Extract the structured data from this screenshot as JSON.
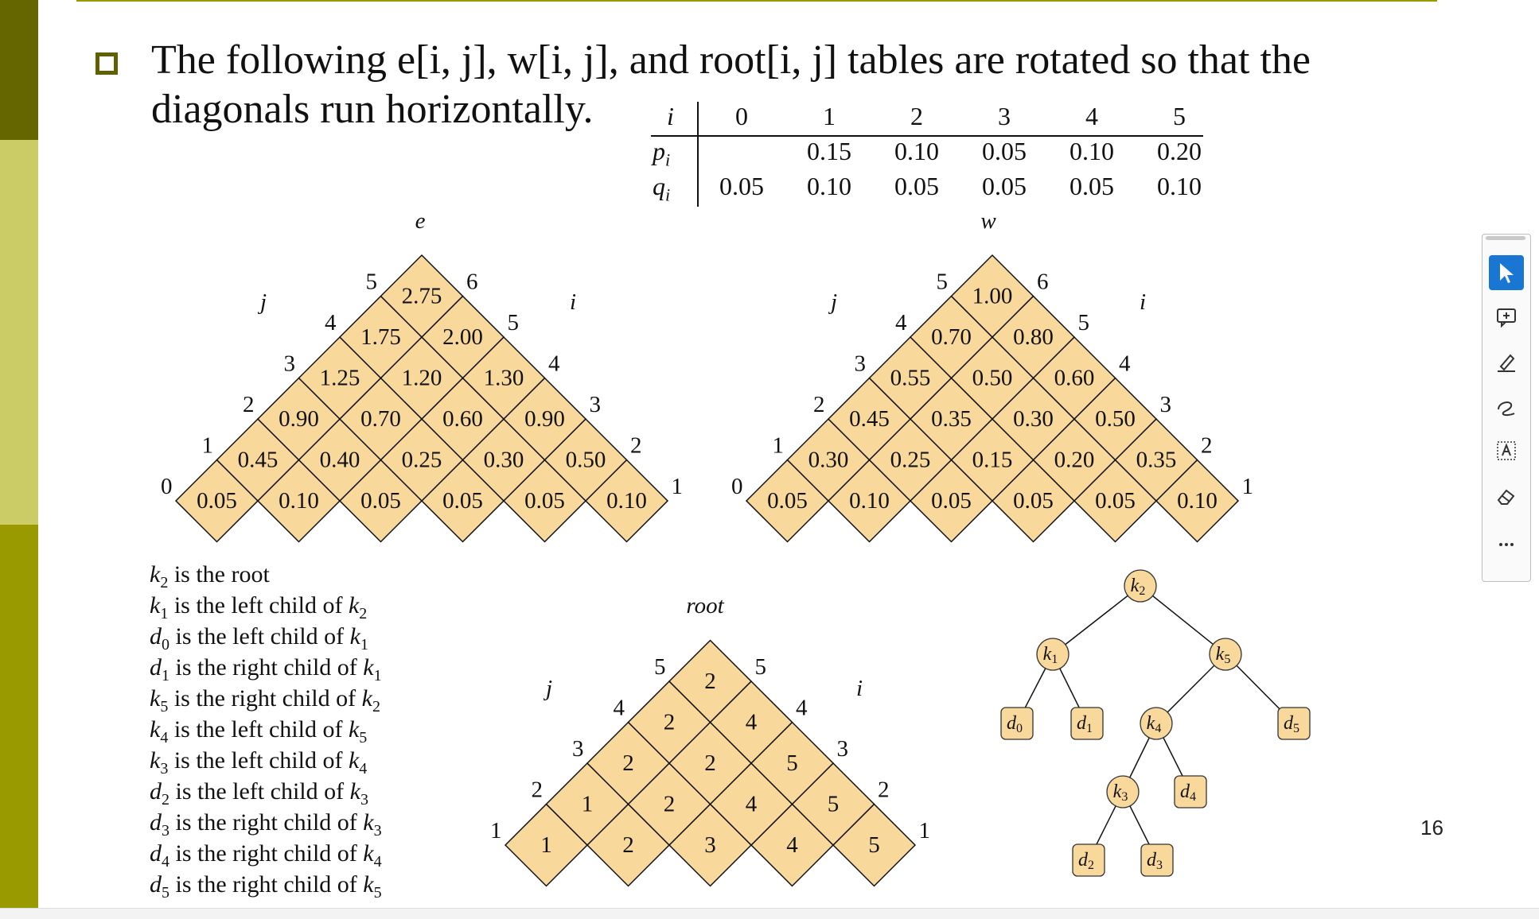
{
  "title": {
    "line1": "The following e[i, j], w[i, j], and root[i, j] tables are rotated so that the",
    "line2": "diagonals run horizontally."
  },
  "prob_table": {
    "i_label": "i",
    "p_label": "p",
    "p_sub": "i",
    "q_label": "q",
    "q_sub": "i",
    "i_values": [
      "0",
      "1",
      "2",
      "3",
      "4",
      "5"
    ],
    "p_values": [
      "",
      "0.15",
      "0.10",
      "0.05",
      "0.10",
      "0.20"
    ],
    "q_values": [
      "0.05",
      "0.10",
      "0.05",
      "0.05",
      "0.05",
      "0.10"
    ]
  },
  "e_table": {
    "label": "e",
    "j_label": "j",
    "i_label": "i",
    "rows": [
      [
        "0.05",
        "0.10",
        "0.05",
        "0.05",
        "0.05",
        "0.10"
      ],
      [
        "0.45",
        "0.40",
        "0.25",
        "0.30",
        "0.50"
      ],
      [
        "0.90",
        "0.70",
        "0.60",
        "0.90"
      ],
      [
        "1.25",
        "1.20",
        "1.30"
      ],
      [
        "1.75",
        "2.00"
      ],
      [
        "2.75"
      ]
    ],
    "j_ticks": [
      "0",
      "1",
      "2",
      "3",
      "4",
      "5"
    ],
    "i_ticks": [
      "1",
      "2",
      "3",
      "4",
      "5",
      "6"
    ]
  },
  "w_table": {
    "label": "w",
    "j_label": "j",
    "i_label": "i",
    "rows": [
      [
        "0.05",
        "0.10",
        "0.05",
        "0.05",
        "0.05",
        "0.10"
      ],
      [
        "0.30",
        "0.25",
        "0.15",
        "0.20",
        "0.35"
      ],
      [
        "0.45",
        "0.35",
        "0.30",
        "0.50"
      ],
      [
        "0.55",
        "0.50",
        "0.60"
      ],
      [
        "0.70",
        "0.80"
      ],
      [
        "1.00"
      ]
    ],
    "j_ticks": [
      "0",
      "1",
      "2",
      "3",
      "4",
      "5"
    ],
    "i_ticks": [
      "1",
      "2",
      "3",
      "4",
      "5",
      "6"
    ]
  },
  "root_table": {
    "label": "root",
    "j_label": "j",
    "i_label": "i",
    "rows": [
      [
        "1",
        "2",
        "3",
        "4",
        "5"
      ],
      [
        "1",
        "2",
        "4",
        "5"
      ],
      [
        "2",
        "2",
        "5"
      ],
      [
        "2",
        "4"
      ],
      [
        "2"
      ]
    ],
    "j_ticks": [
      "1",
      "2",
      "3",
      "4",
      "5"
    ],
    "i_ticks": [
      "1",
      "2",
      "3",
      "4",
      "5"
    ]
  },
  "relations": [
    {
      "a": "k",
      "a_sub": "2",
      "text": " is the root",
      "b": "",
      "b_sub": ""
    },
    {
      "a": "k",
      "a_sub": "1",
      "text": " is the left child of ",
      "b": "k",
      "b_sub": "2"
    },
    {
      "a": "d",
      "a_sub": "0",
      "text": " is the left child of ",
      "b": "k",
      "b_sub": "1"
    },
    {
      "a": "d",
      "a_sub": "1",
      "text": " is the right child of ",
      "b": "k",
      "b_sub": "1"
    },
    {
      "a": "k",
      "a_sub": "5",
      "text": " is the right child of ",
      "b": "k",
      "b_sub": "2"
    },
    {
      "a": "k",
      "a_sub": "4",
      "text": " is the left child of ",
      "b": "k",
      "b_sub": "5"
    },
    {
      "a": "k",
      "a_sub": "3",
      "text": " is the left child of ",
      "b": "k",
      "b_sub": "4"
    },
    {
      "a": "d",
      "a_sub": "2",
      "text": " is the left child of ",
      "b": "k",
      "b_sub": "3"
    },
    {
      "a": "d",
      "a_sub": "3",
      "text": " is the right child of ",
      "b": "k",
      "b_sub": "3"
    },
    {
      "a": "d",
      "a_sub": "4",
      "text": " is the right child of ",
      "b": "k",
      "b_sub": "4"
    },
    {
      "a": "d",
      "a_sub": "5",
      "text": " is the right child of ",
      "b": "k",
      "b_sub": "5"
    }
  ],
  "tree": {
    "nodes": [
      {
        "id": "k2",
        "letter": "k",
        "sub": "2",
        "shape": "circle"
      },
      {
        "id": "k1",
        "letter": "k",
        "sub": "1",
        "shape": "circle"
      },
      {
        "id": "k5",
        "letter": "k",
        "sub": "5",
        "shape": "circle"
      },
      {
        "id": "d0",
        "letter": "d",
        "sub": "0",
        "shape": "box"
      },
      {
        "id": "d1",
        "letter": "d",
        "sub": "1",
        "shape": "box"
      },
      {
        "id": "k4",
        "letter": "k",
        "sub": "4",
        "shape": "circle"
      },
      {
        "id": "d5",
        "letter": "d",
        "sub": "5",
        "shape": "box"
      },
      {
        "id": "k3",
        "letter": "k",
        "sub": "3",
        "shape": "circle"
      },
      {
        "id": "d4",
        "letter": "d",
        "sub": "4",
        "shape": "box"
      },
      {
        "id": "d2",
        "letter": "d",
        "sub": "2",
        "shape": "box"
      },
      {
        "id": "d3",
        "letter": "d",
        "sub": "3",
        "shape": "box"
      }
    ],
    "edges": [
      [
        "k2",
        "k1"
      ],
      [
        "k2",
        "k5"
      ],
      [
        "k1",
        "d0"
      ],
      [
        "k1",
        "d1"
      ],
      [
        "k5",
        "k4"
      ],
      [
        "k5",
        "d5"
      ],
      [
        "k4",
        "k3"
      ],
      [
        "k4",
        "d4"
      ],
      [
        "k3",
        "d2"
      ],
      [
        "k3",
        "d3"
      ]
    ]
  },
  "page_number": "16",
  "colors": {
    "bar_dark": "#666600",
    "bar_light": "#cccc66",
    "bar_mid": "#999900",
    "cell_fill": "#f9d89b",
    "node_fill": "#f9d89b",
    "title_rule": "#999900",
    "tool_active": "#1976d2"
  },
  "toolbar": {
    "tools": [
      {
        "name": "select-tool",
        "icon": "cursor-arrow-icon",
        "active": true
      },
      {
        "name": "add-comment-tool",
        "icon": "comment-plus-icon",
        "active": false
      },
      {
        "name": "highlight-tool",
        "icon": "highlighter-icon",
        "active": false
      },
      {
        "name": "draw-tool",
        "icon": "freehand-draw-icon",
        "active": false
      },
      {
        "name": "text-box-tool",
        "icon": "text-box-icon",
        "active": false
      },
      {
        "name": "erase-tool",
        "icon": "eraser-icon",
        "active": false
      },
      {
        "name": "more-tools",
        "icon": "ellipsis-icon",
        "active": false
      }
    ]
  }
}
